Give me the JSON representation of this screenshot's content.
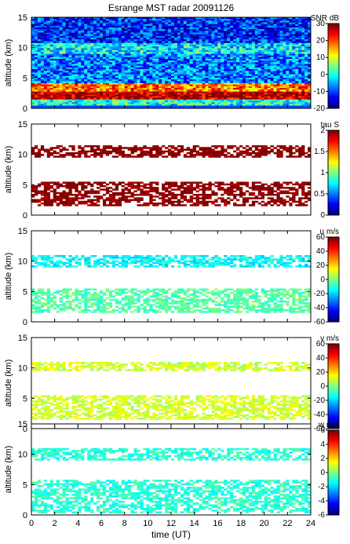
{
  "title": "Esrange MST radar 20091126",
  "x_axis": {
    "label": "time (UT)",
    "ticks": [
      0,
      2,
      4,
      6,
      8,
      10,
      12,
      14,
      16,
      18,
      20,
      22,
      24
    ],
    "range": [
      0,
      24
    ]
  },
  "chart_data": [
    {
      "type": "heatmap",
      "name": "SNR",
      "title": "Esrange MST radar 20091126",
      "ylabel": "altitude (km)",
      "xlabel": "",
      "xlim": [
        0,
        24
      ],
      "ylim": [
        0,
        15
      ],
      "yticks": [
        0,
        5,
        10,
        15
      ],
      "colorbar": {
        "label": "SNR dB",
        "range": [
          -20,
          30
        ],
        "ticks": [
          30,
          20,
          10,
          0,
          -10,
          -20
        ]
      },
      "layers": [
        {
          "alt_range": [
            0.5,
            1.5
          ],
          "value": 0
        },
        {
          "alt_range": [
            1.5,
            2.8
          ],
          "value": 28
        },
        {
          "alt_range": [
            2.8,
            4.2
          ],
          "value": 18
        },
        {
          "alt_range": [
            4.2,
            9.0
          ],
          "value": -8
        },
        {
          "alt_range": [
            9.0,
            10.8
          ],
          "value": -2
        },
        {
          "alt_range": [
            10.8,
            15.0
          ],
          "value": -12
        }
      ]
    },
    {
      "type": "heatmap",
      "name": "tau",
      "ylabel": "altitude (km)",
      "xlim": [
        0,
        24
      ],
      "ylim": [
        0,
        15
      ],
      "yticks": [
        0,
        5,
        10,
        15
      ],
      "colorbar": {
        "label": "tau S",
        "range": [
          0,
          2
        ],
        "ticks": [
          2,
          1.5,
          1,
          0.5,
          0
        ]
      },
      "layers": [
        {
          "alt_range": [
            1.5,
            5.5
          ],
          "value": 2
        },
        {
          "alt_range": [
            9.5,
            11.5
          ],
          "value": 2
        }
      ]
    },
    {
      "type": "heatmap",
      "name": "u",
      "ylabel": "altitude (km)",
      "xlim": [
        0,
        24
      ],
      "ylim": [
        0,
        15
      ],
      "yticks": [
        0,
        5,
        10,
        15
      ],
      "colorbar": {
        "label": "u m/s",
        "range": [
          -60,
          60
        ],
        "ticks": [
          60,
          40,
          20,
          0,
          -20,
          -40,
          -60
        ]
      },
      "layers": [
        {
          "alt_range": [
            1.5,
            5.5
          ],
          "value": -5
        },
        {
          "alt_range": [
            9.0,
            11.0
          ],
          "value": -15
        }
      ]
    },
    {
      "type": "heatmap",
      "name": "v",
      "ylabel": "altitude (km)",
      "xlim": [
        0,
        24
      ],
      "ylim": [
        0,
        15
      ],
      "yticks": [
        0,
        5,
        10,
        15
      ],
      "colorbar": {
        "label": "v m/s",
        "range": [
          -60,
          60
        ],
        "ticks": [
          60,
          40,
          20,
          0,
          -20,
          -40,
          -60
        ]
      },
      "layers": [
        {
          "alt_range": [
            1.5,
            5.5
          ],
          "value": 10
        },
        {
          "alt_range": [
            9.5,
            11.0
          ],
          "value": 10
        }
      ]
    },
    {
      "type": "heatmap",
      "name": "w",
      "ylabel": "altitude (km)",
      "xlabel": "time (UT)",
      "xlim": [
        0,
        24
      ],
      "ylim": [
        0,
        15
      ],
      "yticks": [
        0,
        5,
        10,
        15
      ],
      "colorbar": {
        "label": "w m/s",
        "range": [
          -6,
          6
        ],
        "ticks": [
          6,
          4,
          2,
          0,
          -2,
          -4,
          -6
        ]
      },
      "layers": [
        {
          "alt_range": [
            0.3,
            5.8
          ],
          "value": -1
        },
        {
          "alt_range": [
            9.0,
            11.0
          ],
          "value": -1
        }
      ]
    }
  ]
}
